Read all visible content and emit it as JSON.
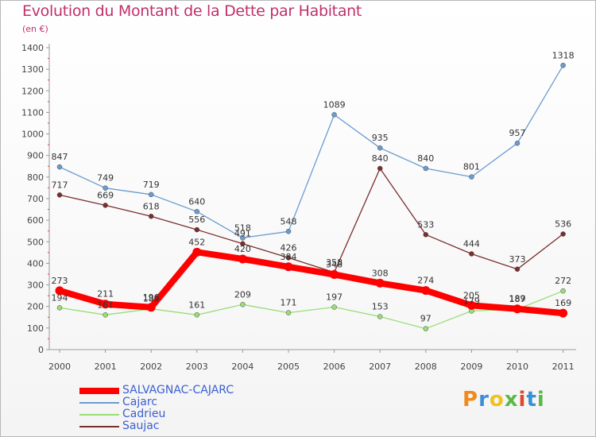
{
  "chart_data": {
    "type": "line",
    "title": "Evolution du Montant de la Dette par Habitant",
    "subtitle": "(en €)",
    "x": [
      "2000",
      "2001",
      "2002",
      "2003",
      "2004",
      "2005",
      "2006",
      "2007",
      "2008",
      "2009",
      "2010",
      "2011"
    ],
    "ylim": [
      0,
      1400
    ],
    "yticks": [
      "0",
      "100",
      "200",
      "300",
      "400",
      "500",
      "600",
      "700",
      "800",
      "900",
      "1000",
      "1100",
      "1200",
      "1300",
      "1400"
    ],
    "grid": false,
    "legend_position": "bottom-left",
    "series": [
      {
        "name": "SALVAGNAC-CAJARC",
        "color": "#ff0000",
        "values": [
          273,
          211,
          196,
          452,
          420,
          384,
          348,
          308,
          274,
          205,
          189,
          169
        ]
      },
      {
        "name": "Cajarc",
        "color": "#6b9bd1",
        "values": [
          847,
          749,
          719,
          640,
          518,
          548,
          1089,
          935,
          840,
          801,
          957,
          1318
        ]
      },
      {
        "name": "Cadrieu",
        "color": "#99dd77",
        "values": [
          194,
          161,
          189,
          161,
          209,
          171,
          197,
          153,
          97,
          179,
          187,
          272
        ]
      },
      {
        "name": "Saujac",
        "color": "#7a2e2e",
        "values": [
          717,
          669,
          618,
          556,
          491,
          426,
          358,
          840,
          533,
          444,
          373,
          536
        ]
      }
    ]
  },
  "branding": {
    "logo_text": "Proxiti"
  }
}
